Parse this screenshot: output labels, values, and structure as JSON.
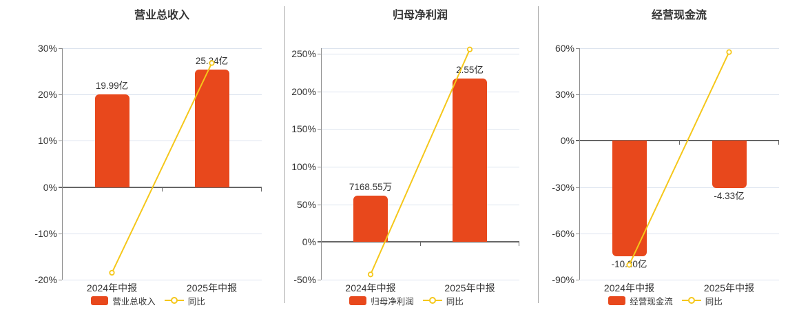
{
  "colors": {
    "bar": "#E8481C",
    "line": "#F5C71A",
    "grid": "#DCE3EE",
    "zero_axis": "#666666",
    "axis": "#8C8C8C",
    "separator": "#A8A8A8",
    "text": "#333333",
    "background": "#FFFFFF"
  },
  "legend_line_label": "同比",
  "chart_data": [
    {
      "type": "bar",
      "title": "营业总收入",
      "categories": [
        "2024年中报",
        "2025年中报"
      ],
      "bar_series": {
        "name": "营业总收入",
        "value_labels": [
          "19.99亿",
          "25.34亿"
        ],
        "values_display_pct": [
          20.0,
          25.34
        ]
      },
      "line_series": {
        "name": "同比",
        "values_pct": [
          -18.5,
          26.8
        ]
      },
      "yticks": [
        30,
        20,
        10,
        0,
        -10,
        -20
      ],
      "ylim": [
        -20,
        30
      ],
      "ytick_suffix": "%",
      "grid": true,
      "legend_position": "bottom"
    },
    {
      "type": "bar",
      "title": "归母净利润",
      "categories": [
        "2024年中报",
        "2025年中报"
      ],
      "bar_series": {
        "name": "归母净利润",
        "value_labels": [
          "7168.55万",
          "2.55亿"
        ],
        "values_display_pct": [
          62,
          217
        ]
      },
      "line_series": {
        "name": "同比",
        "values_pct": [
          -43,
          255.7
        ]
      },
      "yticks": [
        250,
        200,
        150,
        100,
        50,
        0,
        -50
      ],
      "ylim": [
        -50,
        257.3
      ],
      "ytick_suffix": "%",
      "grid": true,
      "legend_position": "bottom"
    },
    {
      "type": "bar",
      "title": "经营现金流",
      "categories": [
        "2024年中报",
        "2025年中报"
      ],
      "bar_series": {
        "name": "经营现金流",
        "value_labels": [
          "-10.20亿",
          "-4.33亿"
        ],
        "values_display_pct": [
          -75,
          -30.5
        ]
      },
      "line_series": {
        "name": "同比",
        "values_pct": [
          -80.4,
          57.5
        ]
      },
      "yticks": [
        60,
        30,
        0,
        -30,
        -60,
        -90
      ],
      "ylim": [
        -90,
        60
      ],
      "ytick_suffix": "%",
      "grid": true,
      "legend_position": "bottom"
    }
  ]
}
